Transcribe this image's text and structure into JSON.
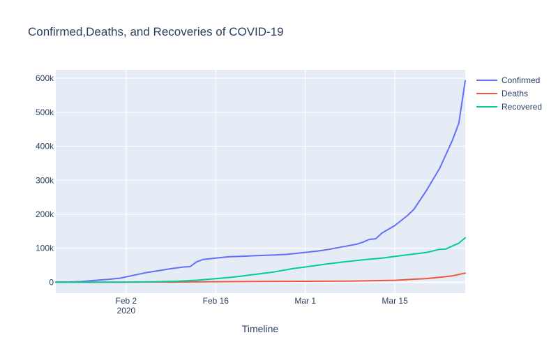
{
  "chart_data": {
    "type": "line",
    "title": "Confirmed,Deaths, and Recoveries of COVID-19",
    "xlabel": "Timeline",
    "ylabel": "",
    "x_start": "2020-01-22",
    "x_end": "2020-03-26",
    "xlim": [
      "2020-01-22",
      "2020-03-26"
    ],
    "ylim": [
      -32000,
      625000
    ],
    "x_ticks": [
      {
        "date": "2020-02-02",
        "label": "Feb 2",
        "sublabel": "2020"
      },
      {
        "date": "2020-02-16",
        "label": "Feb 16",
        "sublabel": ""
      },
      {
        "date": "2020-03-01",
        "label": "Mar 1",
        "sublabel": ""
      },
      {
        "date": "2020-03-15",
        "label": "Mar 15",
        "sublabel": ""
      }
    ],
    "y_ticks": [
      {
        "value": 0,
        "label": "0"
      },
      {
        "value": 100000,
        "label": "100k"
      },
      {
        "value": 200000,
        "label": "200k"
      },
      {
        "value": 300000,
        "label": "300k"
      },
      {
        "value": 400000,
        "label": "400k"
      },
      {
        "value": 500000,
        "label": "500k"
      },
      {
        "value": 600000,
        "label": "600k"
      }
    ],
    "grid": true,
    "legend_position": "top-right",
    "series": [
      {
        "name": "Confirmed",
        "color": "#636efa",
        "points": [
          [
            "2020-01-22",
            555
          ],
          [
            "2020-01-24",
            940
          ],
          [
            "2020-01-26",
            2100
          ],
          [
            "2020-01-28",
            5600
          ],
          [
            "2020-01-30",
            8200
          ],
          [
            "2020-02-01",
            12000
          ],
          [
            "2020-02-03",
            20000
          ],
          [
            "2020-02-05",
            28000
          ],
          [
            "2020-02-07",
            34000
          ],
          [
            "2020-02-09",
            40000
          ],
          [
            "2020-02-11",
            45000
          ],
          [
            "2020-02-12",
            46000
          ],
          [
            "2020-02-13",
            60000
          ],
          [
            "2020-02-14",
            67000
          ],
          [
            "2020-02-16",
            71000
          ],
          [
            "2020-02-18",
            75000
          ],
          [
            "2020-02-20",
            76200
          ],
          [
            "2020-02-22",
            78000
          ],
          [
            "2020-02-25",
            80000
          ],
          [
            "2020-02-27",
            82000
          ],
          [
            "2020-03-01",
            88000
          ],
          [
            "2020-03-03",
            92000
          ],
          [
            "2020-03-05",
            98000
          ],
          [
            "2020-03-07",
            105000
          ],
          [
            "2020-03-09",
            112000
          ],
          [
            "2020-03-10",
            118000
          ],
          [
            "2020-03-11",
            126000
          ],
          [
            "2020-03-12",
            128000
          ],
          [
            "2020-03-13",
            145000
          ],
          [
            "2020-03-15",
            167000
          ],
          [
            "2020-03-17",
            197000
          ],
          [
            "2020-03-18",
            215000
          ],
          [
            "2020-03-20",
            272000
          ],
          [
            "2020-03-22",
            335000
          ],
          [
            "2020-03-24",
            418000
          ],
          [
            "2020-03-25",
            468000
          ],
          [
            "2020-03-26",
            593000
          ]
        ]
      },
      {
        "name": "Deaths",
        "color": "#ef553b",
        "points": [
          [
            "2020-01-22",
            17
          ],
          [
            "2020-02-01",
            259
          ],
          [
            "2020-02-10",
            900
          ],
          [
            "2020-02-16",
            1700
          ],
          [
            "2020-02-24",
            2600
          ],
          [
            "2020-03-01",
            3000
          ],
          [
            "2020-03-08",
            3600
          ],
          [
            "2020-03-15",
            5800
          ],
          [
            "2020-03-18",
            9000
          ],
          [
            "2020-03-20",
            11000
          ],
          [
            "2020-03-22",
            14600
          ],
          [
            "2020-03-24",
            19000
          ],
          [
            "2020-03-26",
            27000
          ]
        ]
      },
      {
        "name": "Recovered",
        "color": "#00cc96",
        "points": [
          [
            "2020-01-22",
            28
          ],
          [
            "2020-02-01",
            500
          ],
          [
            "2020-02-06",
            1500
          ],
          [
            "2020-02-10",
            3200
          ],
          [
            "2020-02-13",
            5900
          ],
          [
            "2020-02-16",
            10800
          ],
          [
            "2020-02-18",
            14000
          ],
          [
            "2020-02-20",
            18000
          ],
          [
            "2020-02-22",
            23000
          ],
          [
            "2020-02-25",
            30000
          ],
          [
            "2020-02-28",
            40000
          ],
          [
            "2020-03-01",
            45000
          ],
          [
            "2020-03-04",
            53000
          ],
          [
            "2020-03-07",
            60000
          ],
          [
            "2020-03-10",
            66000
          ],
          [
            "2020-03-13",
            71000
          ],
          [
            "2020-03-15",
            76000
          ],
          [
            "2020-03-17",
            81000
          ],
          [
            "2020-03-20",
            88000
          ],
          [
            "2020-03-22",
            97000
          ],
          [
            "2020-03-23",
            98000
          ],
          [
            "2020-03-24",
            107000
          ],
          [
            "2020-03-25",
            115000
          ],
          [
            "2020-03-26",
            131000
          ]
        ]
      }
    ]
  }
}
